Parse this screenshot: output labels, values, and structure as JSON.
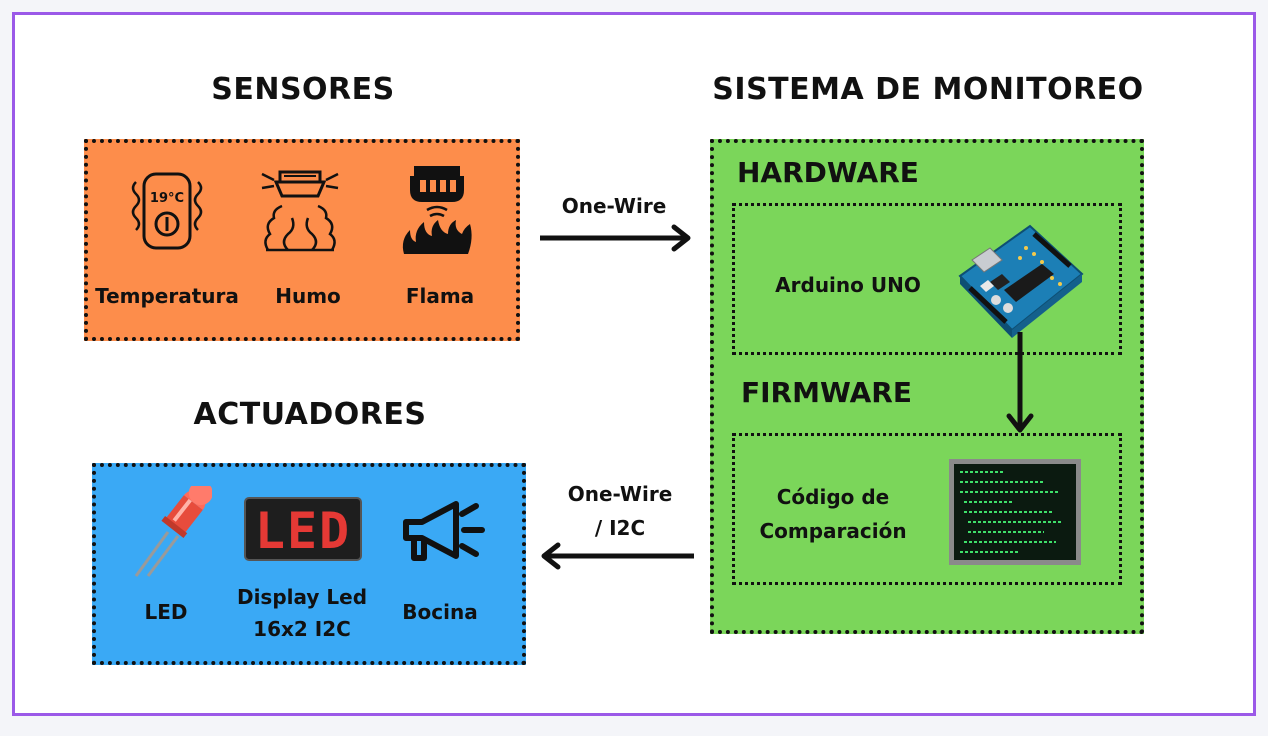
{
  "headings": {
    "sensors": "SENSORES",
    "system": "SISTEMA DE MONITOREO",
    "actuators": "ACTUADORES"
  },
  "sensors": {
    "items": [
      {
        "label": "Temperatura",
        "icon": "thermostat-icon",
        "readout": "19°C"
      },
      {
        "label": "Humo",
        "icon": "smoke-detector-icon"
      },
      {
        "label": "Flama",
        "icon": "flame-detector-icon"
      }
    ]
  },
  "system": {
    "hardware_title": "HARDWARE",
    "hardware_item": "Arduino UNO",
    "firmware_title": "FIRMWARE",
    "firmware_item_line1": "Código de",
    "firmware_item_line2": "Comparación"
  },
  "actuators": {
    "items": [
      {
        "label": "LED",
        "icon": "led-bulb-icon"
      },
      {
        "label_line1": "Display Led",
        "label_line2": "16x2 I2C",
        "icon": "led-display-icon",
        "display_text": "LED"
      },
      {
        "label": "Bocina",
        "icon": "megaphone-icon"
      }
    ]
  },
  "connections": {
    "sensors_to_system": "One-Wire",
    "system_to_actuators_line1": "One-Wire",
    "system_to_actuators_line2": "/ I2C"
  },
  "colors": {
    "frame": "#9b59e8",
    "sensors_fill": "#fd8d4b",
    "system_fill": "#7bd65a",
    "actuators_fill": "#3aa9f5"
  }
}
